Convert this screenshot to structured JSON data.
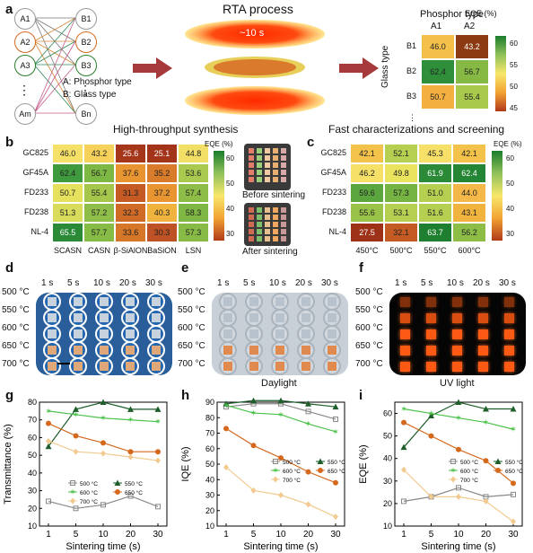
{
  "panel_a": {
    "label": "a",
    "nodes_a": [
      "A1",
      "A2",
      "A3",
      "⋮",
      "Am"
    ],
    "nodes_b": [
      "B1",
      "B2",
      "B3",
      "⋮",
      "Bn"
    ],
    "legend_a": "A: Phosphor type",
    "legend_b": "B: Glass type",
    "caption_left": "High-throughput synthesis",
    "rta_title": "RTA process",
    "rta_time": "~10 s",
    "caption_right": "Fast characterizations and screening",
    "mini": {
      "title": "Phosphor type",
      "cols": [
        "A1",
        "A2"
      ],
      "rows": [
        "B1",
        "B2",
        "B3"
      ],
      "side_title": "Glass type",
      "values": [
        [
          "46.0",
          "43.2"
        ],
        [
          "62.4",
          "56.7"
        ],
        [
          "50.7",
          "55.4"
        ]
      ],
      "colors": [
        [
          "#f5c04a",
          "#8b3a12"
        ],
        [
          "#2f8e3a",
          "#85b944"
        ],
        [
          "#f3b040",
          "#a8c94c"
        ]
      ],
      "cbar_title": "EQE (%)",
      "ticks": [
        "60",
        "55",
        "50",
        "45"
      ]
    }
  },
  "panel_b": {
    "label": "b",
    "rows": [
      "GC825",
      "GF45A",
      "FD233",
      "FD238",
      "NL-4"
    ],
    "cols": [
      "SCASN",
      "CASN",
      "β-SiAlON",
      "BaSiON",
      "LSN"
    ],
    "values": [
      [
        "46.0",
        "43.2",
        "25.6",
        "25.1",
        "44.8"
      ],
      [
        "62.4",
        "56.7",
        "37.6",
        "35.2",
        "53.6"
      ],
      [
        "50.7",
        "55.4",
        "31.3",
        "37.2",
        "57.4"
      ],
      [
        "51.3",
        "57.2",
        "32.3",
        "40.3",
        "58.3"
      ],
      [
        "65.5",
        "57.7",
        "33.6",
        "30.3",
        "57.3"
      ]
    ],
    "colors": [
      [
        "#f5e068",
        "#f6d25a",
        "#a6361a",
        "#a3341a",
        "#f2df66"
      ],
      [
        "#3f9a3d",
        "#7db744",
        "#e79431",
        "#d87b2b",
        "#a9ca4f"
      ],
      [
        "#e5e15c",
        "#a4c74b",
        "#c65a24",
        "#e79431",
        "#8ebd47"
      ],
      [
        "#d9dc5a",
        "#8fbe48",
        "#cf6a27",
        "#f0b33e",
        "#7fb744"
      ],
      [
        "#2a8a38",
        "#86bb46",
        "#d57628",
        "#bf5224",
        "#88bb46"
      ]
    ],
    "cbar_title": "EQE (%)",
    "ticks": [
      "60",
      "50",
      "40",
      "30"
    ],
    "photo_top": "Before sintering",
    "photo_bottom": "After sintering"
  },
  "panel_c": {
    "label": "c",
    "rows": [
      "GC825",
      "GF45A",
      "FD233",
      "FD238",
      "NL-4"
    ],
    "cols": [
      "450°C",
      "500°C",
      "550°C",
      "600°C"
    ],
    "values": [
      [
        "42.1",
        "52.1",
        "45.3",
        "42.1"
      ],
      [
        "46.2",
        "49.8",
        "61.9",
        "62.4"
      ],
      [
        "59.6",
        "57.3",
        "51.0",
        "44.0"
      ],
      [
        "55.6",
        "53.1",
        "51.6",
        "43.1"
      ],
      [
        "27.5",
        "32.1",
        "63.7",
        "56.2"
      ]
    ],
    "colors": [
      [
        "#f3c24a",
        "#b5cf50",
        "#f6e068",
        "#f3c24a"
      ],
      [
        "#f6e068",
        "#e9e35e",
        "#2a8a38",
        "#248535"
      ],
      [
        "#5ca640",
        "#75b343",
        "#b5cf50",
        "#f3b848"
      ],
      [
        "#99c248",
        "#b5cf50",
        "#b5cf50",
        "#f0b33e"
      ],
      [
        "#9e3219",
        "#c45a24",
        "#1f7f30",
        "#8dbd47"
      ]
    ],
    "cbar_title": "EQE (%)",
    "ticks": [
      "60",
      "50",
      "40",
      "30"
    ]
  },
  "panel_d": {
    "label": "d",
    "times": [
      "1 s",
      "5 s",
      "10 s",
      "20 s",
      "30 s"
    ],
    "temps": [
      "500 °C",
      "550 °C",
      "600 °C",
      "650 °C",
      "700 °C"
    ]
  },
  "panel_e": {
    "label": "e",
    "times": [
      "1 s",
      "5 s",
      "10 s",
      "20 s",
      "30 s"
    ],
    "temps": [
      "500 °C",
      "550 °C",
      "600 °C",
      "650 °C",
      "700 °C"
    ],
    "caption": "Daylight"
  },
  "panel_f": {
    "label": "f",
    "times": [
      "1 s",
      "5 s",
      "10 s",
      "20 s",
      "30 s"
    ],
    "temps": [
      "500 °C",
      "550 °C",
      "600 °C",
      "650 °C",
      "700 °C"
    ],
    "caption": "UV light"
  },
  "series_colors": {
    "500": "#888888",
    "550": "#1d5e2a",
    "600": "#4cc24c",
    "650": "#d4691e",
    "700": "#f2c98e"
  },
  "chart_data": [
    {
      "panel": "g",
      "type": "line",
      "x": [
        1,
        5,
        10,
        20,
        30
      ],
      "xlabel": "Sintering time (s)",
      "ylabel": "Transmittance (%)",
      "ylim": [
        10,
        80
      ],
      "yticks": [
        10,
        20,
        30,
        40,
        50,
        60,
        70,
        80
      ],
      "legend": "bottom-right",
      "series": [
        {
          "name": "500 °C",
          "values": [
            24,
            20,
            22,
            27,
            21
          ]
        },
        {
          "name": "550 °C",
          "values": [
            55,
            76,
            80,
            76,
            76
          ]
        },
        {
          "name": "600 °C",
          "values": [
            75,
            73,
            71,
            70,
            69
          ]
        },
        {
          "name": "650 °C",
          "values": [
            68,
            61,
            57,
            52,
            52
          ]
        },
        {
          "name": "700 °C",
          "values": [
            58,
            52,
            51,
            49,
            47
          ]
        }
      ]
    },
    {
      "panel": "h",
      "type": "line",
      "x": [
        1,
        5,
        10,
        20,
        30
      ],
      "xlabel": "Sintering time (s)",
      "ylabel": "IQE (%)",
      "ylim": [
        10,
        90
      ],
      "yticks": [
        10,
        20,
        30,
        40,
        50,
        60,
        70,
        80,
        90
      ],
      "legend": "middle-right",
      "series": [
        {
          "name": "500 °C",
          "values": [
            87,
            89,
            89,
            84,
            79
          ]
        },
        {
          "name": "550 °C",
          "values": [
            89,
            91,
            91,
            89,
            87
          ]
        },
        {
          "name": "600 °C",
          "values": [
            88,
            83,
            82,
            76,
            71
          ]
        },
        {
          "name": "650 °C",
          "values": [
            73,
            62,
            54,
            45,
            38
          ]
        },
        {
          "name": "700 °C",
          "values": [
            48,
            33,
            30,
            24,
            16
          ]
        }
      ]
    },
    {
      "panel": "i",
      "type": "line",
      "x": [
        1,
        5,
        10,
        20,
        30
      ],
      "xlabel": "Sintering time (s)",
      "ylabel": "EQE (%)",
      "ylim": [
        10,
        65
      ],
      "yticks": [
        10,
        20,
        30,
        40,
        50,
        60
      ],
      "legend": "middle-right",
      "series": [
        {
          "name": "500 °C",
          "values": [
            21,
            23,
            27,
            23,
            24
          ]
        },
        {
          "name": "550 °C",
          "values": [
            45,
            59,
            65,
            62,
            62
          ]
        },
        {
          "name": "600 °C",
          "values": [
            62,
            60,
            58,
            56,
            53
          ]
        },
        {
          "name": "650 °C",
          "values": [
            56,
            50,
            44,
            39,
            29
          ]
        },
        {
          "name": "700 °C",
          "values": [
            35,
            23,
            23,
            21,
            12
          ]
        }
      ]
    }
  ]
}
